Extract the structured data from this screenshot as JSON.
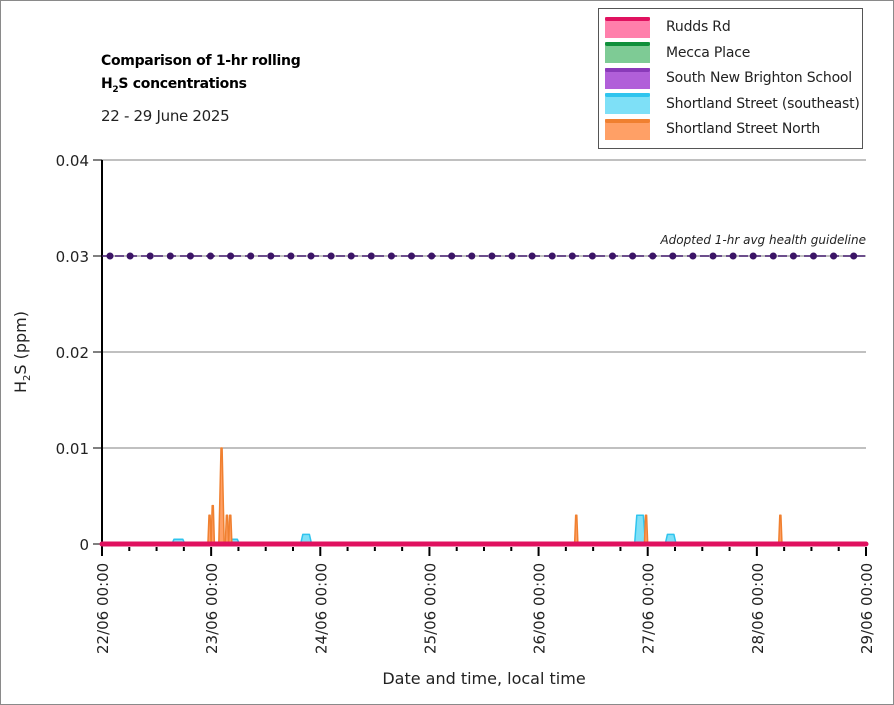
{
  "chart_data": {
    "type": "area",
    "title_line1": "Comparison of 1-hr rolling",
    "title_line2_main": "H",
    "title_line2_sub": "2",
    "title_line2_rest": "S concentrations",
    "subtitle": "22 - 29 June 2025",
    "ylabel_main": "H",
    "ylabel_sub": "2",
    "ylabel_rest": "S (ppm)",
    "xlabel": "Date and time, local time",
    "ylim": [
      0,
      0.04
    ],
    "yticks": [
      {
        "value": 0,
        "label": "0"
      },
      {
        "value": 0.01,
        "label": "0.01"
      },
      {
        "value": 0.02,
        "label": "0.02"
      },
      {
        "value": 0.03,
        "label": "0.03"
      },
      {
        "value": 0.04,
        "label": "0.04"
      }
    ],
    "xlim_days": [
      0,
      7
    ],
    "xticks": [
      {
        "day": 0,
        "label": "22/06 00:00"
      },
      {
        "day": 1,
        "label": "23/06 00:00"
      },
      {
        "day": 2,
        "label": "24/06 00:00"
      },
      {
        "day": 3,
        "label": "25/06 00:00"
      },
      {
        "day": 4,
        "label": "26/06 00:00"
      },
      {
        "day": 5,
        "label": "27/06 00:00"
      },
      {
        "day": 6,
        "label": "28/06 00:00"
      },
      {
        "day": 7,
        "label": "29/06 00:00"
      }
    ],
    "minor_ticks_per_day": 4,
    "grid": true,
    "legend_position": "top-right",
    "guideline": {
      "label": "Adopted 1-hr avg health guideline",
      "value": 0.03,
      "color": "#3b1466"
    },
    "series": [
      {
        "name": "Rudds Rd",
        "fill": "#ff7fab",
        "line": "#e0115f",
        "points": [
          [
            0,
            0
          ],
          [
            7,
            0
          ]
        ]
      },
      {
        "name": "Mecca Place",
        "fill": "#7ecb95",
        "line": "#0f8f3a",
        "points": [
          [
            0,
            0
          ],
          [
            7,
            0
          ]
        ]
      },
      {
        "name": "South New Brighton School",
        "fill": "#b15fd9",
        "line": "#8a3ab9",
        "points": [
          [
            0,
            0
          ],
          [
            7,
            0
          ]
        ]
      },
      {
        "name": "Shortland Street (southeast)",
        "fill": "#7ee0f7",
        "line": "#2fc4ee",
        "points": [
          [
            0.64,
            0
          ],
          [
            0.66,
            0.0005
          ],
          [
            0.74,
            0.0005
          ],
          [
            0.76,
            0
          ],
          [
            1.17,
            0
          ],
          [
            1.19,
            0.0005
          ],
          [
            1.24,
            0.0005
          ],
          [
            1.26,
            0
          ],
          [
            1.82,
            0
          ],
          [
            1.84,
            0.001
          ],
          [
            1.9,
            0.001
          ],
          [
            1.92,
            0
          ],
          [
            4.88,
            0
          ],
          [
            4.9,
            0.003
          ],
          [
            4.96,
            0.003
          ],
          [
            4.98,
            0
          ],
          [
            5.16,
            0
          ],
          [
            5.18,
            0.001
          ],
          [
            5.24,
            0.001
          ],
          [
            5.26,
            0
          ]
        ]
      },
      {
        "name": "Shortland Street North",
        "fill": "#ffa066",
        "line": "#f08030",
        "points": [
          [
            0.97,
            0
          ],
          [
            0.98,
            0.003
          ],
          [
            0.99,
            0.003
          ],
          [
            1.0,
            0
          ],
          [
            1.0,
            0
          ],
          [
            1.01,
            0.004
          ],
          [
            1.02,
            0.004
          ],
          [
            1.03,
            0
          ],
          [
            1.07,
            0
          ],
          [
            1.09,
            0.01
          ],
          [
            1.1,
            0.01
          ],
          [
            1.12,
            0
          ],
          [
            1.13,
            0
          ],
          [
            1.14,
            0.003
          ],
          [
            1.15,
            0.003
          ],
          [
            1.16,
            0
          ],
          [
            1.16,
            0
          ],
          [
            1.17,
            0.003
          ],
          [
            1.18,
            0.003
          ],
          [
            1.19,
            0
          ],
          [
            4.33,
            0
          ],
          [
            4.34,
            0.003
          ],
          [
            4.35,
            0.003
          ],
          [
            4.36,
            0
          ],
          [
            4.97,
            0
          ],
          [
            4.98,
            0.003
          ],
          [
            4.99,
            0.003
          ],
          [
            5.0,
            0
          ],
          [
            6.2,
            0
          ],
          [
            6.21,
            0.003
          ],
          [
            6.22,
            0.003
          ],
          [
            6.23,
            0
          ]
        ]
      }
    ]
  }
}
